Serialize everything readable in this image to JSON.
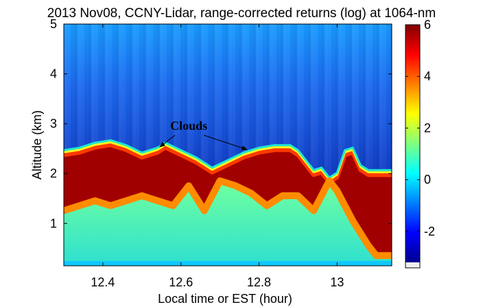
{
  "chart_data": {
    "type": "heatmap",
    "title": "2013 Nov08, CCNY-Lidar, range-corrected returns (log) at 1064-nm",
    "xlabel": "Local time or EST (hour)",
    "ylabel": "Altitude (km)",
    "xlim": [
      12.3,
      13.14
    ],
    "ylim": [
      0.15,
      5
    ],
    "xticks": [
      "12.4",
      "12.6",
      "12.8",
      "13"
    ],
    "yticks": [
      "1",
      "2",
      "3",
      "4",
      "5"
    ],
    "colorbar": {
      "range": [
        -3.2,
        6
      ],
      "ticks": [
        "-2",
        "0",
        "2",
        "4",
        "6"
      ]
    },
    "colormap": "jet",
    "cloud_top_km": {
      "x": [
        12.3,
        12.34,
        12.38,
        12.42,
        12.46,
        12.5,
        12.54,
        12.56,
        12.6,
        12.64,
        12.68,
        12.72,
        12.76,
        12.8,
        12.84,
        12.88,
        12.9,
        12.92,
        12.94,
        12.96,
        12.98,
        13.0,
        13.02,
        13.04,
        13.06,
        13.08,
        13.1,
        13.14
      ],
      "y": [
        2.4,
        2.45,
        2.55,
        2.6,
        2.5,
        2.35,
        2.45,
        2.55,
        2.4,
        2.25,
        2.05,
        2.2,
        2.35,
        2.45,
        2.5,
        2.5,
        2.4,
        2.2,
        2.0,
        2.05,
        1.85,
        1.95,
        2.4,
        2.45,
        2.1,
        2.0,
        2.0,
        2.0
      ]
    },
    "dense_layer_bottom_km": {
      "x": [
        12.3,
        12.34,
        12.38,
        12.42,
        12.46,
        12.5,
        12.54,
        12.58,
        12.62,
        12.66,
        12.7,
        12.74,
        12.78,
        12.82,
        12.86,
        12.9,
        12.94,
        12.98,
        13.0,
        13.04,
        13.08,
        13.1,
        13.14
      ],
      "y": [
        1.2,
        1.3,
        1.4,
        1.3,
        1.4,
        1.5,
        1.4,
        1.3,
        1.7,
        1.2,
        1.8,
        1.7,
        1.55,
        1.3,
        1.5,
        1.5,
        1.2,
        1.8,
        1.6,
        1.0,
        0.5,
        0.3,
        0.3
      ]
    },
    "annotations": [
      {
        "text": "Clouds",
        "x": 12.62,
        "y": 2.88,
        "arrows_to": [
          [
            12.545,
            2.53
          ],
          [
            12.77,
            2.48
          ]
        ]
      }
    ]
  }
}
